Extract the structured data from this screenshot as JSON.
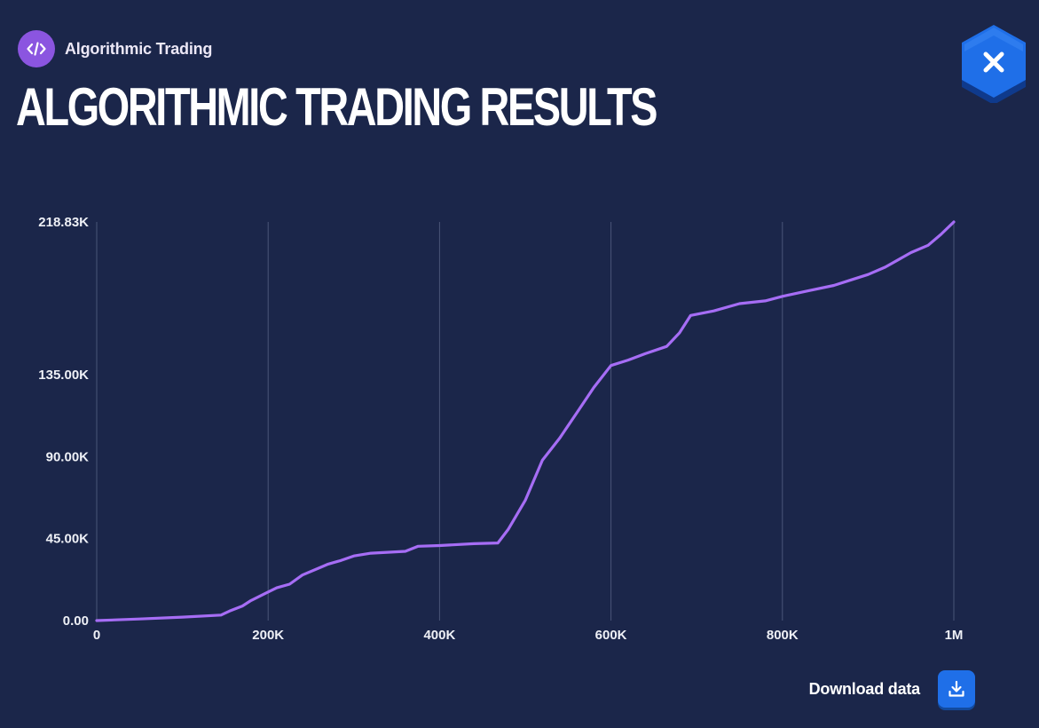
{
  "header": {
    "category_label": "Algorithmic Trading",
    "category_icon": "code-icon",
    "title": "ALGORITHMIC TRADING RESULTS",
    "close_icon": "close-icon"
  },
  "footer": {
    "download_label": "Download data",
    "download_icon": "download-icon"
  },
  "colors": {
    "background": "#1b264a",
    "accent": "#8b55e0",
    "line": "#a66df5",
    "button": "#1f6fe8"
  },
  "chart_data": {
    "type": "line",
    "title": "",
    "xlabel": "",
    "ylabel": "",
    "xlim": [
      0,
      1000000
    ],
    "ylim": [
      0,
      218830
    ],
    "x_ticks": [
      0,
      200000,
      400000,
      600000,
      800000,
      1000000
    ],
    "x_tick_labels": [
      "0",
      "200K",
      "400K",
      "600K",
      "800K",
      "1M"
    ],
    "y_ticks": [
      0,
      45000,
      90000,
      135000,
      218830
    ],
    "y_tick_labels": [
      "0.00",
      "45.00K",
      "90.00K",
      "135.00K",
      "218.83K"
    ],
    "grid": "vertical",
    "series": [
      {
        "values": [
          [
            0,
            0
          ],
          [
            50000,
            900
          ],
          [
            100000,
            1900
          ],
          [
            145000,
            3000
          ],
          [
            155000,
            5200
          ],
          [
            170000,
            8000
          ],
          [
            180000,
            11000
          ],
          [
            195000,
            14500
          ],
          [
            210000,
            18000
          ],
          [
            225000,
            20000
          ],
          [
            240000,
            25000
          ],
          [
            260000,
            29000
          ],
          [
            270000,
            31000
          ],
          [
            285000,
            33000
          ],
          [
            300000,
            35500
          ],
          [
            320000,
            37000
          ],
          [
            360000,
            38000
          ],
          [
            375000,
            40800
          ],
          [
            400000,
            41200
          ],
          [
            440000,
            42200
          ],
          [
            468000,
            42600
          ],
          [
            480000,
            50000
          ],
          [
            500000,
            66000
          ],
          [
            520000,
            88000
          ],
          [
            540000,
            100000
          ],
          [
            560000,
            114000
          ],
          [
            580000,
            128000
          ],
          [
            600000,
            140000
          ],
          [
            620000,
            143000
          ],
          [
            640000,
            146500
          ],
          [
            665000,
            150500
          ],
          [
            680000,
            158000
          ],
          [
            693000,
            167500
          ],
          [
            720000,
            170000
          ],
          [
            750000,
            174000
          ],
          [
            780000,
            175500
          ],
          [
            800000,
            178000
          ],
          [
            830000,
            181000
          ],
          [
            860000,
            184000
          ],
          [
            880000,
            187000
          ],
          [
            900000,
            190000
          ],
          [
            920000,
            194000
          ],
          [
            950000,
            202000
          ],
          [
            970000,
            206000
          ],
          [
            985000,
            212000
          ],
          [
            1000000,
            218830
          ]
        ]
      }
    ]
  }
}
